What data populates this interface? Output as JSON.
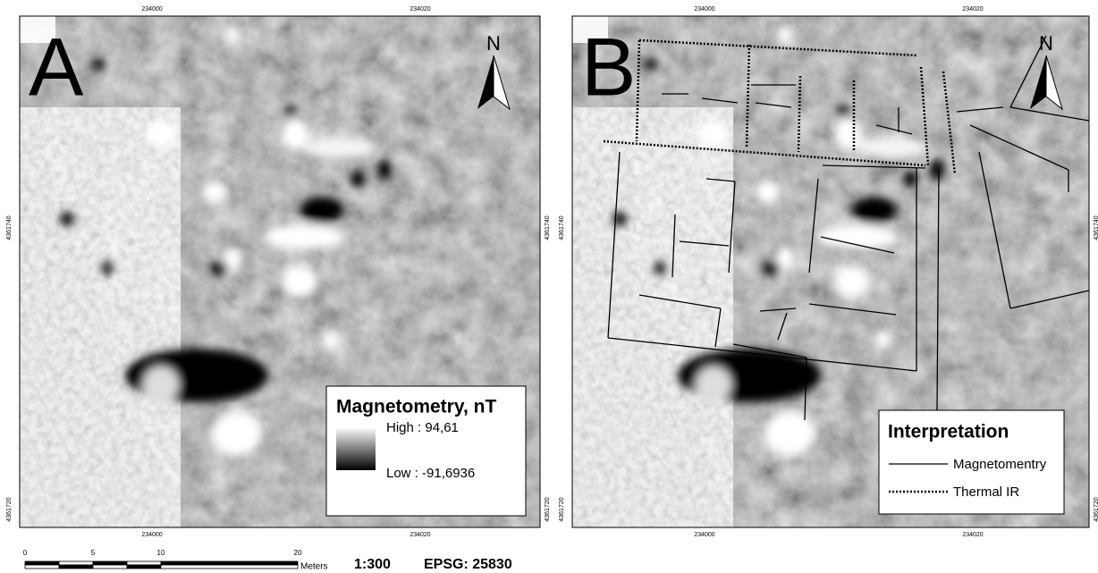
{
  "panels": [
    {
      "label": "A",
      "north": "N",
      "x_labels": [
        "234000",
        "234020"
      ],
      "y_labels": [
        "4361740",
        "4361720"
      ],
      "legend": {
        "title": "Magnetometry, nT",
        "high": "High : 94,61",
        "low": "Low : -91,6936"
      }
    },
    {
      "label": "B",
      "north": "N",
      "x_labels": [
        "234000",
        "234020"
      ],
      "y_labels": [
        "4361740",
        "4361720"
      ],
      "legend": {
        "title": "Interpretation",
        "items": [
          "Magnetomentry",
          "Thermal IR"
        ]
      }
    }
  ],
  "scale": {
    "ticks": [
      "0",
      "5",
      "10",
      "20"
    ],
    "unit": "Meters",
    "ratio": "1:300",
    "epsg": "EPSG: 25830"
  }
}
